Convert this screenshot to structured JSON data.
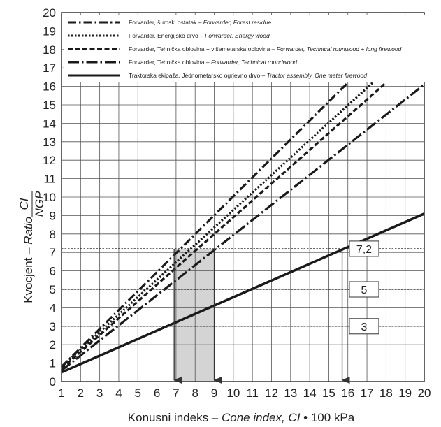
{
  "chart_data": {
    "type": "line",
    "xlabel": {
      "prefix": "Konusni indeks – ",
      "italic": "Cone index, CI",
      "suffix": " • 100 kPa"
    },
    "ylabel": {
      "prefix": "Kvocjent – ",
      "italic": "Ratio ",
      "numerator": "CI",
      "denominator": "NGP"
    },
    "xlim": [
      1,
      20
    ],
    "ylim": [
      0,
      20
    ],
    "x_ticks": [
      1,
      2,
      3,
      4,
      5,
      6,
      7,
      8,
      9,
      10,
      11,
      12,
      13,
      14,
      15,
      16,
      17,
      18,
      19,
      20
    ],
    "y_ticks": [
      0,
      1,
      2,
      3,
      4,
      5,
      6,
      7,
      8,
      9,
      10,
      11,
      12,
      13,
      14,
      15,
      16,
      17,
      18,
      19,
      20
    ],
    "grid": true,
    "legend_position": "top",
    "series": [
      {
        "name": "Forvarder, šumski ostatak – Forwarder, Forest residue",
        "label_regular": "Forvarder, šumski ostatak – ",
        "label_italic": "Forwarder, Forest residue",
        "style": "dash-dot",
        "x": [
          1,
          16.0
        ],
        "y": [
          0.8,
          16.2
        ]
      },
      {
        "name": "Forvarder, Energijsko drvo – Forwarder, Energy wood",
        "label_regular": "Forvarder, Energijsko drvo – ",
        "label_italic": "Forwarder, Energy wood",
        "style": "dotted",
        "x": [
          1,
          17.3
        ],
        "y": [
          0.8,
          16.2
        ]
      },
      {
        "name": "Forvarder, Tehnička oblovina + višemetarska oblovina – Forwarder, Technical rounwood + long firewood",
        "label_regular": "Forvarder, Tehnička oblovina + višemetarska oblovina – ",
        "label_italic": "Forwarder, Technical rounwood + long firewood",
        "style": "dashed",
        "x": [
          1,
          18.0
        ],
        "y": [
          0.7,
          16.2
        ]
      },
      {
        "name": "Forvarder, Tehnička oblovina – Forwarder, Technical roundwood",
        "label_regular": "Forvarder, Tehnička oblovina – ",
        "label_italic": "Forwarder, Technical roundwood",
        "style": "long-dash-dot",
        "x": [
          1,
          20
        ],
        "y": [
          0.6,
          16.1
        ]
      },
      {
        "name": "Traktorska ekipaža, Jednometarsko ogrjevno drvo – Tractor assembly, One meter firewood",
        "label_regular": "Traktorska ekipaža, Jednometarsko ogrjevno drvo – ",
        "label_italic": "Tractor assembly, One meter firewood",
        "style": "solid",
        "x": [
          1,
          20
        ],
        "y": [
          0.5,
          9.1
        ]
      }
    ],
    "reference_lines": [
      {
        "y": 7.2,
        "label": "7,2"
      },
      {
        "y": 5,
        "label": "5"
      },
      {
        "y": 3,
        "label": "3"
      }
    ],
    "shaded_region": {
      "x": [
        6.9,
        9.0
      ],
      "y": [
        0,
        7.2
      ]
    },
    "arrows": [
      {
        "x": 6.9,
        "from_y": 7.2,
        "to_y": 0
      },
      {
        "x": 9.0,
        "from_y": 7.2,
        "to_y": 0
      },
      {
        "x": 15.7,
        "from_y": 7.2,
        "to_y": 0
      }
    ]
  }
}
